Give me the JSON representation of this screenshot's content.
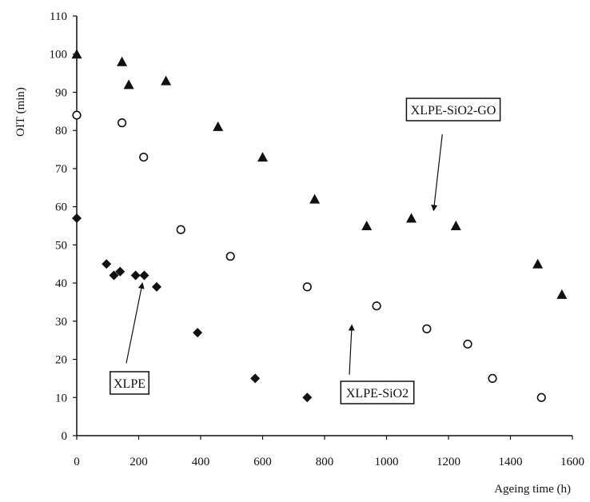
{
  "chart_data": {
    "type": "scatter",
    "title": "",
    "xlabel": "Ageing time (h)",
    "ylabel": "OIT (min)",
    "xlim": [
      0,
      1600
    ],
    "ylim": [
      0,
      110
    ],
    "x_ticks": [
      0,
      200,
      400,
      600,
      800,
      1000,
      1200,
      1400,
      1600
    ],
    "y_ticks": [
      0,
      10,
      20,
      30,
      40,
      50,
      60,
      70,
      80,
      90,
      100,
      110
    ],
    "grid": false,
    "series": [
      {
        "name": "XLPE",
        "marker": "diamond",
        "color": "#111111",
        "points": [
          {
            "x": 0,
            "y": 57
          },
          {
            "x": 96,
            "y": 45
          },
          {
            "x": 120,
            "y": 42
          },
          {
            "x": 140,
            "y": 43
          },
          {
            "x": 190,
            "y": 42
          },
          {
            "x": 218,
            "y": 42
          },
          {
            "x": 258,
            "y": 39
          },
          {
            "x": 390,
            "y": 27
          },
          {
            "x": 576,
            "y": 15
          },
          {
            "x": 744,
            "y": 10
          }
        ]
      },
      {
        "name": "XLPE-SiO2",
        "marker": "circle-open",
        "color": "#111111",
        "points": [
          {
            "x": 0,
            "y": 84
          },
          {
            "x": 146,
            "y": 82
          },
          {
            "x": 216,
            "y": 73
          },
          {
            "x": 336,
            "y": 54
          },
          {
            "x": 496,
            "y": 47
          },
          {
            "x": 744,
            "y": 39
          },
          {
            "x": 968,
            "y": 34
          },
          {
            "x": 1130,
            "y": 28
          },
          {
            "x": 1262,
            "y": 24
          },
          {
            "x": 1342,
            "y": 15
          },
          {
            "x": 1500,
            "y": 10
          }
        ]
      },
      {
        "name": "XLPE-SiO2-GO",
        "marker": "triangle",
        "color": "#111111",
        "points": [
          {
            "x": 0,
            "y": 100
          },
          {
            "x": 146,
            "y": 98
          },
          {
            "x": 168,
            "y": 92
          },
          {
            "x": 288,
            "y": 93
          },
          {
            "x": 456,
            "y": 81
          },
          {
            "x": 600,
            "y": 73
          },
          {
            "x": 768,
            "y": 62
          },
          {
            "x": 936,
            "y": 55
          },
          {
            "x": 1080,
            "y": 57
          },
          {
            "x": 1224,
            "y": 55
          },
          {
            "x": 1488,
            "y": 45
          },
          {
            "x": 1566,
            "y": 37
          }
        ]
      }
    ],
    "annotations": [
      {
        "label": "XLPE",
        "arrow_from": {
          "x": 160,
          "y": 19
        },
        "arrow_to": {
          "x": 212,
          "y": 40
        }
      },
      {
        "label": "XLPE-SiO2",
        "arrow_from": {
          "x": 880,
          "y": 16
        },
        "arrow_to": {
          "x": 888,
          "y": 29
        }
      },
      {
        "label": "XLPE-SiO2-GO",
        "arrow_from": {
          "x": 1180,
          "y": 79
        },
        "arrow_to": {
          "x": 1152,
          "y": 59
        }
      }
    ]
  }
}
